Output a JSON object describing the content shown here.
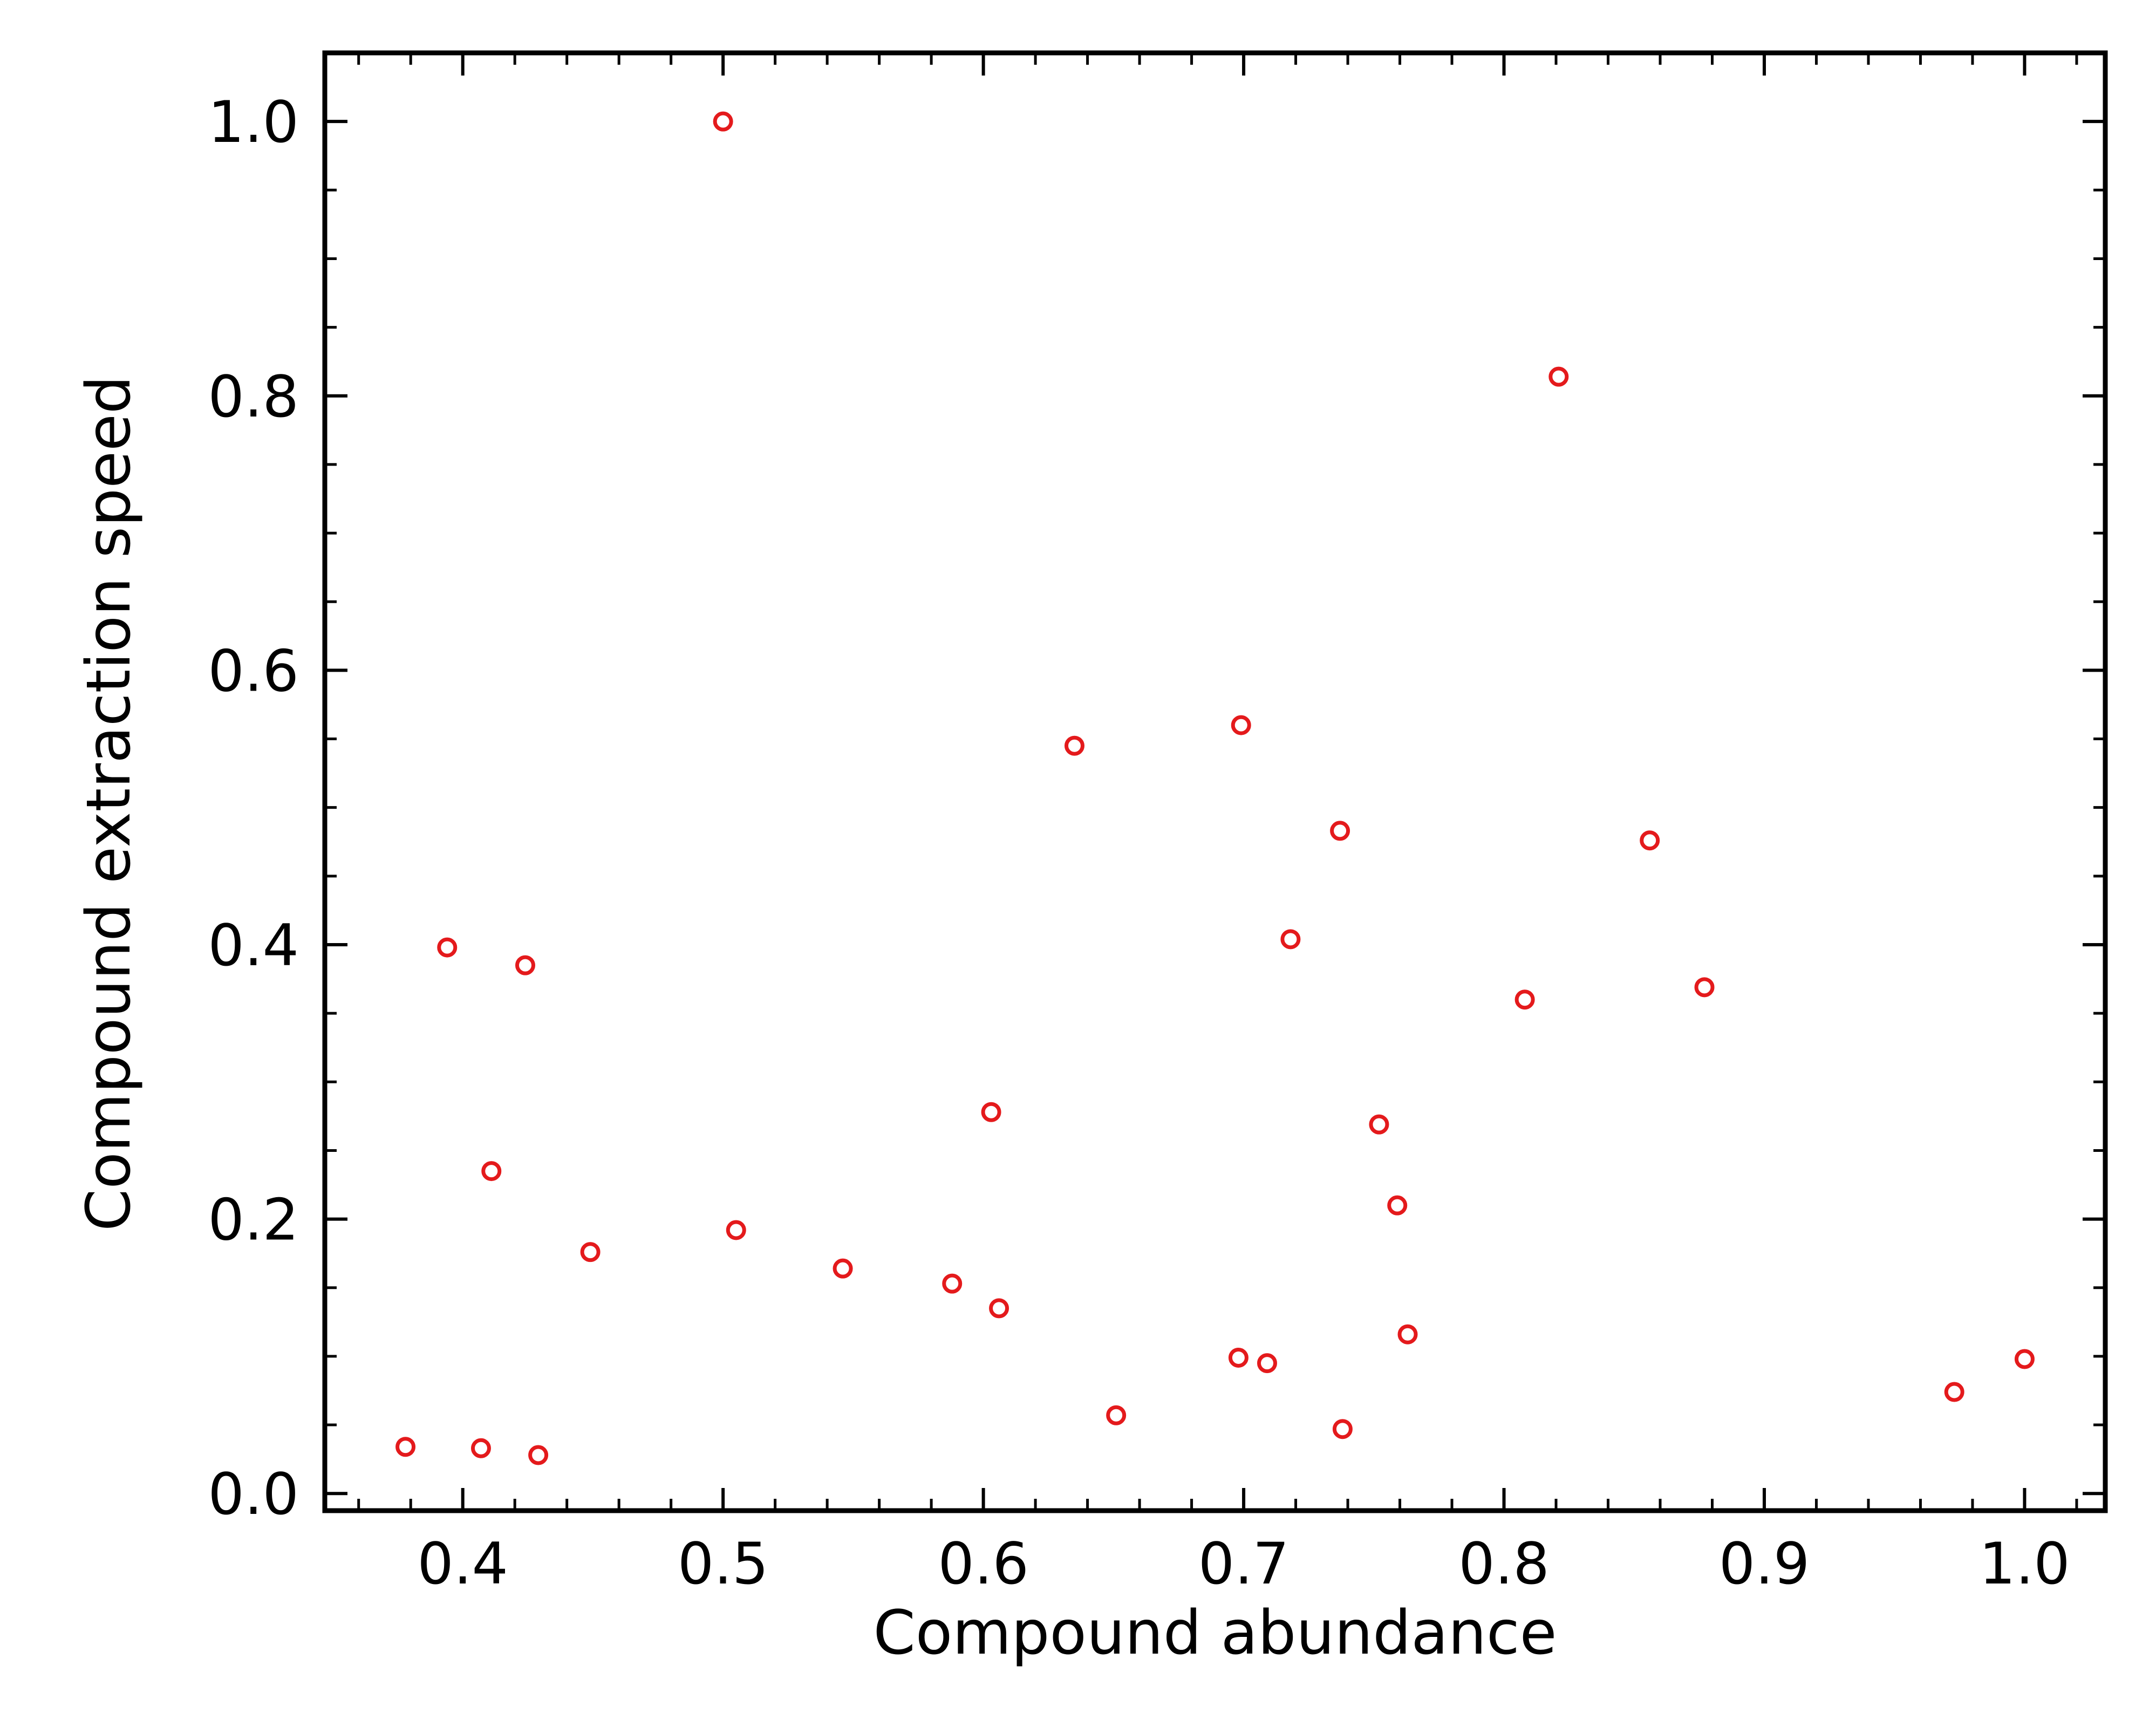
{
  "chart_data": {
    "type": "scatter",
    "xlabel": "Compound abundance",
    "ylabel": "Compound extraction speed",
    "xlim": [
      0.347,
      1.031
    ],
    "ylim": [
      -0.0125,
      1.05
    ],
    "x_ticks": [
      0.4,
      0.5,
      0.6,
      0.7,
      0.8,
      0.9,
      1.0
    ],
    "x_tick_labels": [
      "0.4",
      "0.5",
      "0.6",
      "0.7",
      "0.8",
      "0.9",
      "1.0"
    ],
    "y_ticks": [
      0.0,
      0.2,
      0.4,
      0.6,
      0.8,
      1.0
    ],
    "y_tick_labels": [
      "0.0",
      "0.2",
      "0.4",
      "0.6",
      "0.8",
      "1.0"
    ],
    "x_minor_step": 0.02,
    "y_minor_step": 0.05,
    "grid": false,
    "marker": "open-circle",
    "color": "#e41a1c",
    "series": [
      {
        "x": [
          0.378,
          0.394,
          0.407,
          0.411,
          0.424,
          0.429,
          0.449,
          0.5,
          0.505,
          0.546,
          0.588,
          0.603,
          0.606,
          0.635,
          0.651,
          0.698,
          0.699,
          0.709,
          0.718,
          0.737,
          0.738,
          0.752,
          0.759,
          0.763,
          0.808,
          0.821,
          0.856,
          0.877,
          0.973,
          1.0
        ],
        "y": [
          0.034,
          0.398,
          0.033,
          0.235,
          0.385,
          0.028,
          0.176,
          1.0,
          0.192,
          0.164,
          0.153,
          0.278,
          0.135,
          0.545,
          0.057,
          0.099,
          0.56,
          0.095,
          0.404,
          0.483,
          0.047,
          0.269,
          0.21,
          0.116,
          0.36,
          0.814,
          0.476,
          0.369,
          0.074,
          0.098
        ]
      }
    ]
  }
}
